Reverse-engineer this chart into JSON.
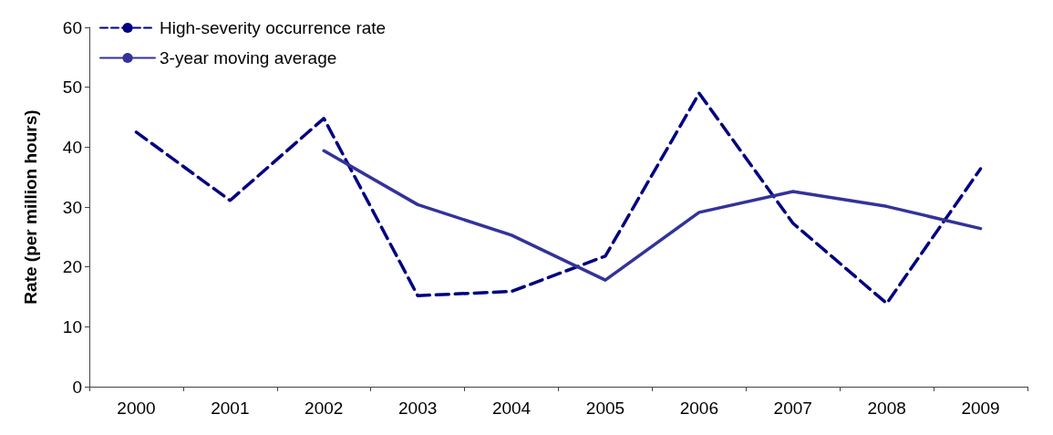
{
  "chart_data": {
    "type": "line",
    "ylabel": "Rate (per million hours)",
    "categories": [
      "2000",
      "2001",
      "2002",
      "2003",
      "2004",
      "2005",
      "2006",
      "2007",
      "2008",
      "2009"
    ],
    "series": [
      {
        "name": "High-severity occurrence rate",
        "color": "#000080",
        "line_style": "dashed",
        "values": [
          42.5,
          31.1,
          44.8,
          15.2,
          15.9,
          21.8,
          49.0,
          27.3,
          13.9,
          36.4
        ]
      },
      {
        "name": "3-year moving average",
        "color": "#333399",
        "line_style": "solid",
        "values": [
          null,
          null,
          39.4,
          30.4,
          25.3,
          17.8,
          29.1,
          32.6,
          30.1,
          26.4
        ]
      }
    ],
    "ylim": [
      0,
      60
    ],
    "yticks": [
      0,
      10,
      20,
      30,
      40,
      50,
      60
    ],
    "grid": false,
    "legend": "top left",
    "marker": "none"
  }
}
